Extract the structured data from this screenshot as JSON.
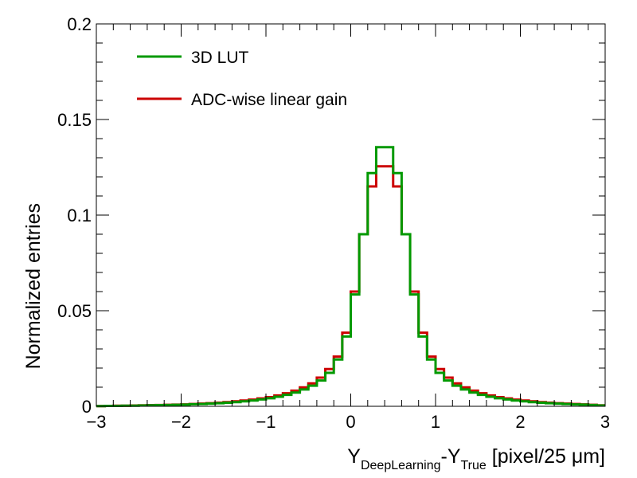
{
  "chart_data": {
    "type": "step-histogram",
    "title": "",
    "xlabel_main": "Y",
    "xlabel_sub1": "DeepLearning",
    "xlabel_mid": "-Y",
    "xlabel_sub2": "True",
    "xlabel_tail": " [pixel/25 μm]",
    "ylabel": "Normalized entries",
    "xlim": [
      -3,
      3
    ],
    "ylim": [
      0,
      0.2
    ],
    "x_ticks": [
      -3,
      -2,
      -1,
      0,
      1,
      2,
      3
    ],
    "x_tick_labels": [
      "−3",
      "−2",
      "−1",
      "0",
      "1",
      "2",
      "3"
    ],
    "y_ticks": [
      0,
      0.05,
      0.1,
      0.15,
      0.2
    ],
    "y_tick_labels": [
      "0",
      "0.05",
      "0.1",
      "0.15",
      "0.2"
    ],
    "bin_width": 0.1,
    "bin_edges_start": -3.0,
    "legend_position": "top-left",
    "series": [
      {
        "name": "ADC-wise linear gain",
        "color": "#cc0000",
        "values": [
          0.0001,
          0.0002,
          0.0003,
          0.0003,
          0.0004,
          0.0005,
          0.0006,
          0.0007,
          0.0008,
          0.0009,
          0.001,
          0.0012,
          0.0014,
          0.0016,
          0.0019,
          0.0022,
          0.0026,
          0.003,
          0.0035,
          0.0041,
          0.0048,
          0.0057,
          0.0068,
          0.0082,
          0.0099,
          0.012,
          0.015,
          0.0195,
          0.026,
          0.0385,
          0.06,
          0.09,
          0.115,
          0.1255,
          0.1255,
          0.115,
          0.09,
          0.06,
          0.0385,
          0.026,
          0.0195,
          0.015,
          0.012,
          0.0099,
          0.0082,
          0.0068,
          0.0057,
          0.0048,
          0.0041,
          0.0035,
          0.003,
          0.0026,
          0.0022,
          0.0019,
          0.0016,
          0.0014,
          0.0012,
          0.001,
          0.0008,
          0.0005
        ]
      },
      {
        "name": "3D LUT",
        "color": "#009900",
        "values": [
          0.0001,
          0.0002,
          0.0002,
          0.0003,
          0.0003,
          0.0004,
          0.0005,
          0.0006,
          0.0007,
          0.0008,
          0.0009,
          0.0011,
          0.0012,
          0.0014,
          0.0016,
          0.0019,
          0.0022,
          0.0026,
          0.003,
          0.0036,
          0.0042,
          0.005,
          0.006,
          0.0072,
          0.0088,
          0.0108,
          0.0135,
          0.0175,
          0.0245,
          0.0365,
          0.0585,
          0.09,
          0.122,
          0.1355,
          0.1355,
          0.122,
          0.09,
          0.0585,
          0.0365,
          0.0245,
          0.0175,
          0.0135,
          0.0108,
          0.0088,
          0.0072,
          0.006,
          0.005,
          0.0042,
          0.0036,
          0.003,
          0.0026,
          0.0022,
          0.0019,
          0.0016,
          0.0014,
          0.0012,
          0.001,
          0.0009,
          0.0007,
          0.0004
        ]
      }
    ],
    "legend": [
      {
        "label": "3D LUT",
        "color": "#009900"
      },
      {
        "label": "ADC-wise linear gain",
        "color": "#cc0000"
      }
    ]
  }
}
